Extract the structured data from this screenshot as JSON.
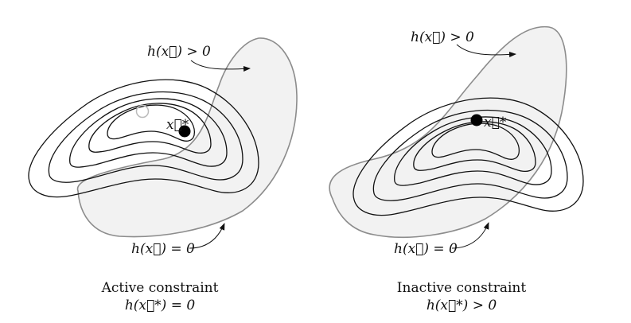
{
  "panels": [
    {
      "title": "Active constraint",
      "condition": "h(x⃗*) = 0",
      "region_label": "h(x⃗) > 0",
      "boundary_label": "h(x⃗) = 0",
      "point_label": "x⃗*"
    },
    {
      "title": "Inactive constraint",
      "condition": "h(x⃗*) > 0",
      "region_label": "h(x⃗) > 0",
      "boundary_label": "h(x⃗) = 0",
      "point_label": "x⃗*"
    }
  ],
  "colors": {
    "feasible_fill": "#f2f2f2",
    "feasible_stroke": "#8c8c8c",
    "contour": "#111111",
    "optimum": "#000000",
    "unconstrained_min": "#bbbbbb"
  }
}
